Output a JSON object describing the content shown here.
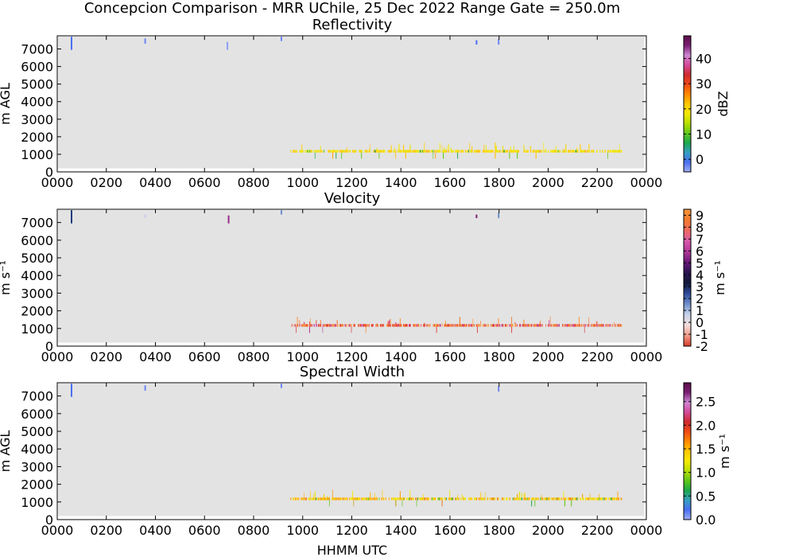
{
  "figure": {
    "suptitle": "Concepcion Comparison - MRR UChile, 25 Dec 2022 Range Gate = 250.0m",
    "xlabel": "HHMM UTC"
  },
  "chart_data": [
    {
      "type": "heatmap",
      "title": "Reflectivity",
      "ylabel": "m AGL",
      "xticks": [
        "0000",
        "0200",
        "0400",
        "0600",
        "0800",
        "1000",
        "1200",
        "1400",
        "1600",
        "1800",
        "2000",
        "2200",
        "0000"
      ],
      "yticks": [
        "0",
        "1000",
        "2000",
        "3000",
        "4000",
        "5000",
        "6000",
        "7000"
      ],
      "xlim": [
        0,
        24
      ],
      "ylim": [
        0,
        7750
      ],
      "background": "#e3e3e3",
      "colorbar": {
        "label": "dBZ",
        "range": [
          -5,
          49
        ],
        "ticks": [
          "0",
          "10",
          "20",
          "30",
          "40"
        ],
        "tick_values": [
          0,
          10,
          20,
          30,
          40
        ],
        "stops": [
          "#9fb0f5",
          "#4a6ef0",
          "#35a0c0",
          "#1ca84b",
          "#62c81a",
          "#b8e000",
          "#f6e900",
          "#ffc800",
          "#ff8800",
          "#ee4a14",
          "#d02a30",
          "#d44a9a",
          "#cf86d3",
          "#7a1f72",
          "#5a0f4c"
        ]
      },
      "features": {
        "band_start": 9.5,
        "band_end": 23.0,
        "band_heights": [
          1100,
          1250
        ],
        "spike_max": 1700,
        "band_colors": [
          "#f6e900",
          "#ffd200",
          "#f3e500",
          "#ffc800",
          "#e8e400"
        ],
        "accent_colors": [
          "#ff9a00",
          "#1ca84b",
          "#62c81a",
          "#ffc000"
        ],
        "upper_echoes": [
          {
            "t": 0.55,
            "y0": 6950,
            "y1": 7700,
            "color": "#4a6ef0"
          },
          {
            "t": 3.55,
            "y0": 7300,
            "y1": 7600,
            "color": "#6a86f2"
          },
          {
            "t": 6.9,
            "y0": 6950,
            "y1": 7400,
            "color": "#8aa0f5"
          },
          {
            "t": 9.1,
            "y0": 7450,
            "y1": 7700,
            "color": "#6a86f2"
          },
          {
            "t": 17.05,
            "y0": 7250,
            "y1": 7500,
            "color": "#4a6ef0"
          },
          {
            "t": 17.95,
            "y0": 7250,
            "y1": 7550,
            "color": "#6a86f2"
          }
        ]
      }
    },
    {
      "type": "heatmap",
      "title": "Velocity",
      "ylabel": "m s⁻¹",
      "xticks": [
        "0000",
        "0200",
        "0400",
        "0600",
        "0800",
        "1000",
        "1200",
        "1400",
        "1600",
        "1800",
        "2000",
        "2200",
        "0000"
      ],
      "yticks": [
        "0",
        "1000",
        "2000",
        "3000",
        "4000",
        "5000",
        "6000",
        "7000"
      ],
      "xlim": [
        0,
        24
      ],
      "ylim": [
        0,
        7750
      ],
      "background": "#e3e3e3",
      "colorbar": {
        "label": "m s⁻¹",
        "range": [
          -2,
          9.5
        ],
        "ticks": [
          "-2",
          "-1",
          "0",
          "1",
          "2",
          "3",
          "4",
          "5",
          "6",
          "7",
          "8",
          "9"
        ],
        "tick_values": [
          -2,
          -1,
          0,
          1,
          2,
          3,
          4,
          5,
          6,
          7,
          8,
          9
        ],
        "stops": [
          "#d83a2a",
          "#f09a88",
          "#f4dede",
          "#c7d3ec",
          "#6f8fcc",
          "#2e4a9a",
          "#121a3a",
          "#2a1450",
          "#6a1a7a",
          "#b4389a",
          "#d75aaa",
          "#ef6a60",
          "#f47a30",
          "#f8963a"
        ]
      },
      "features": {
        "band_start": 9.5,
        "band_end": 23.0,
        "band_heights": [
          1100,
          1250
        ],
        "spike_max": 1700,
        "band_colors": [
          "#ef4e2a",
          "#f47a30",
          "#d03c8c",
          "#e85a3a",
          "#f8963a"
        ],
        "accent_colors": [
          "#d62020",
          "#b4389a",
          "#f08a30",
          "#e03030"
        ],
        "upper_echoes": [
          {
            "t": 0.55,
            "y0": 6950,
            "y1": 7700,
            "color": "#1e3a7a"
          },
          {
            "t": 3.55,
            "y0": 7250,
            "y1": 7450,
            "color": "#d6c6ea"
          },
          {
            "t": 6.95,
            "y0": 6950,
            "y1": 7400,
            "color": "#9a2a8a"
          },
          {
            "t": 9.1,
            "y0": 7450,
            "y1": 7700,
            "color": "#6f8fcc"
          },
          {
            "t": 17.05,
            "y0": 7250,
            "y1": 7450,
            "color": "#7a1f72"
          },
          {
            "t": 17.95,
            "y0": 7250,
            "y1": 7550,
            "color": "#6f8fcc"
          }
        ]
      }
    },
    {
      "type": "heatmap",
      "title": "Spectral Width",
      "ylabel": "m AGL",
      "xticks": [
        "0000",
        "0200",
        "0400",
        "0600",
        "0800",
        "1000",
        "1200",
        "1400",
        "1600",
        "1800",
        "2000",
        "2200",
        "0000"
      ],
      "yticks": [
        "0",
        "1000",
        "2000",
        "3000",
        "4000",
        "5000",
        "6000",
        "7000"
      ],
      "xlim": [
        0,
        24
      ],
      "ylim": [
        0,
        7750
      ],
      "background": "#e3e3e3",
      "colorbar": {
        "label": "m s⁻¹",
        "range": [
          0,
          2.9
        ],
        "ticks": [
          "0.0",
          "0.5",
          "1.0",
          "1.5",
          "2.0",
          "2.5"
        ],
        "tick_values": [
          0,
          0.5,
          1.0,
          1.5,
          2.0,
          2.5
        ],
        "stops": [
          "#9fb0f5",
          "#4a6ef0",
          "#35a0c0",
          "#1ca84b",
          "#62c81a",
          "#b8e000",
          "#f6e900",
          "#ffc800",
          "#ff8800",
          "#ee4a14",
          "#d02a30",
          "#d44a9a",
          "#cf86d3",
          "#7a1f72",
          "#5a0f4c"
        ]
      },
      "features": {
        "band_start": 9.5,
        "band_end": 23.0,
        "band_heights": [
          1100,
          1250
        ],
        "spike_max": 1700,
        "band_colors": [
          "#f6e900",
          "#ffc800",
          "#ff9a00",
          "#e8e400",
          "#ffb000"
        ],
        "accent_colors": [
          "#1ca84b",
          "#62c81a",
          "#ee6a14",
          "#c8a000"
        ],
        "upper_echoes": [
          {
            "t": 0.55,
            "y0": 6950,
            "y1": 7700,
            "color": "#4a6ef0"
          },
          {
            "t": 3.55,
            "y0": 7300,
            "y1": 7600,
            "color": "#6a86f2"
          },
          {
            "t": 9.1,
            "y0": 7450,
            "y1": 7700,
            "color": "#6a86f2"
          },
          {
            "t": 17.95,
            "y0": 7250,
            "y1": 7550,
            "color": "#6a86f2"
          }
        ]
      }
    }
  ]
}
